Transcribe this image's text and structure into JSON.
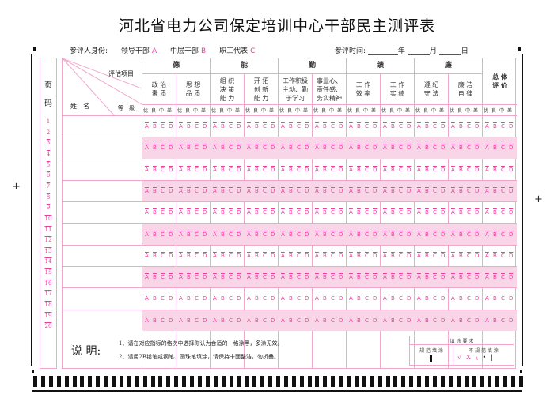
{
  "title": "河北省电力公司保定培训中心干部民主测评表",
  "identity": {
    "label": "参评人身份:",
    "options": [
      {
        "name": "领导干部",
        "code": "A"
      },
      {
        "name": "中层干部",
        "code": "B"
      },
      {
        "name": "职工代表",
        "code": "C"
      }
    ]
  },
  "time": {
    "label": "参评时间:",
    "year": "年",
    "month": "月",
    "day": "日"
  },
  "page_code_label": [
    "页",
    "码"
  ],
  "page_numbers": [
    "1",
    "2",
    "3",
    "4",
    "5",
    "6",
    "7",
    "8",
    "9",
    "10",
    "11",
    "12",
    "13",
    "14",
    "15",
    "16",
    "17",
    "18",
    "19",
    "20"
  ],
  "corner": {
    "item": "评估项目",
    "name": "姓　名",
    "grade": "等　级"
  },
  "categories": [
    {
      "name": "德",
      "items": [
        "政 治\n素 质",
        "思 想\n品 质"
      ]
    },
    {
      "name": "能",
      "items": [
        "组 织\n决 策\n能 力",
        "开 拓\n创 新\n能 力"
      ]
    },
    {
      "name": "勤",
      "items": [
        "工作积极\n主动、勤\n于学习",
        "事业心、\n责任感、\n务实精神"
      ]
    },
    {
      "name": "绩",
      "items": [
        "工 作\n效 率",
        "工 作\n实 绩"
      ]
    },
    {
      "name": "廉",
      "items": [
        "遵 纪\n守 法",
        "廉 洁\n自 律"
      ]
    }
  ],
  "total": "总 体\n评 价",
  "grades": [
    "优",
    "良",
    "中",
    "差"
  ],
  "bubbles": [
    "A",
    "B",
    "C",
    "D"
  ],
  "row_count": 10,
  "notes": {
    "label": "说 明:",
    "lines": [
      "1、请在对应指标的格次中选择你认为合适的一格涂黑，多涂无效。",
      "2、请用2B铅笔或钢笔、圆珠笔填涂，请保持卡面整洁，勿折叠。"
    ]
  },
  "legend": {
    "title": "填 涂 要 求",
    "correct": "规 范 填 涂",
    "incorrect": "不 规 范 填 涂",
    "incorrect_marks": [
      "√",
      "X",
      "\\",
      "•",
      "|"
    ]
  },
  "colors": {
    "line": "#f2a6cc",
    "mark": "#e8409c",
    "fill": "#f9d6e7"
  }
}
